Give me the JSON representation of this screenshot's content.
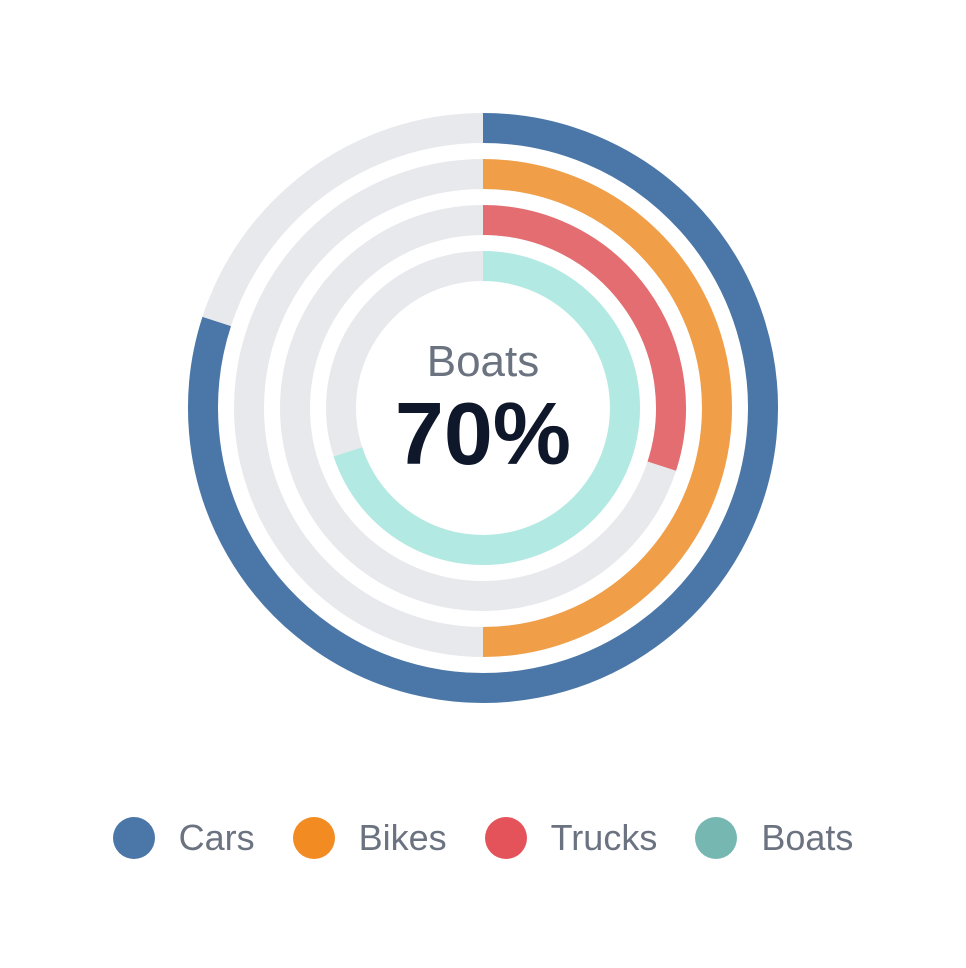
{
  "chart_data": {
    "type": "radial-bar",
    "center": {
      "label": "Boats",
      "value_text": "70%"
    },
    "max": 100,
    "track_color": "#e8e9ed",
    "series": [
      {
        "name": "Cars",
        "value": 80,
        "color": "#4b77a8",
        "legend_color": "#4b77a8"
      },
      {
        "name": "Bikes",
        "value": 50,
        "color": "#f09e47",
        "legend_color": "#f28b22"
      },
      {
        "name": "Trucks",
        "value": 30,
        "color": "#e36d70",
        "legend_color": "#e4535a"
      },
      {
        "name": "Boats",
        "value": 70,
        "color": "#b2eae3",
        "legend_color": "#76b7b2"
      }
    ]
  }
}
